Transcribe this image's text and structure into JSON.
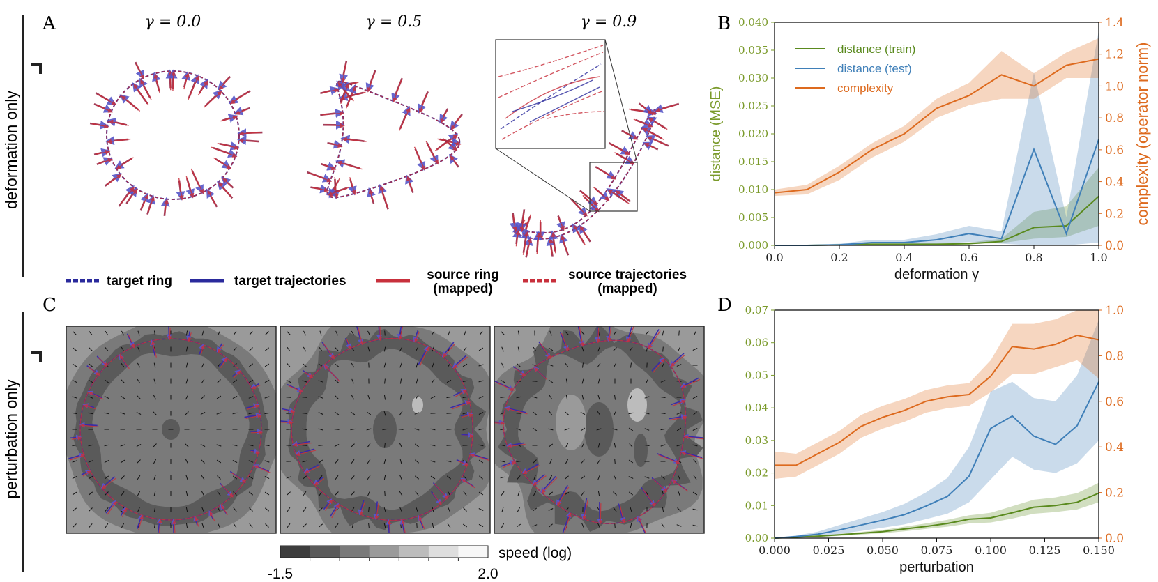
{
  "panel_letters": [
    "A",
    "B",
    "C",
    "D"
  ],
  "row_labels": [
    "deformation only",
    "perturbation only"
  ],
  "panel_a": {
    "subtitles": [
      "γ = 0.0",
      "γ = 0.5",
      "γ = 0.9"
    ]
  },
  "legend_a": [
    {
      "label": "target ring",
      "color": "#2a2a9c",
      "style": "dashed"
    },
    {
      "label": "target trajectories",
      "color": "#2a2a9c",
      "style": "solid"
    },
    {
      "label": "source ring\n(mapped)",
      "color": "#c8303c",
      "style": "solid"
    },
    {
      "label": "source trajectories\n(mapped)",
      "color": "#c8303c",
      "style": "dashed"
    }
  ],
  "colorbar": {
    "label": "speed (log)",
    "min_label": "-1.5",
    "max_label": "2.0",
    "colors": [
      "#3d3d3d",
      "#5a5a5a",
      "#7a7a7a",
      "#9a9a9a",
      "#bcbcbc",
      "#dedede",
      "#f7f7f7"
    ]
  },
  "colors": {
    "train": "#5a8a1e",
    "test": "#3f7fb8",
    "complexity": "#dd6a1e",
    "left_axis": "#7a9a2a",
    "right_axis": "#dd6a1e"
  },
  "chart_data": [
    {
      "panel": "B",
      "type": "line",
      "xlabel": "deformation γ",
      "ylabel_left": "distance (MSE)",
      "ylabel_right": "complexity (operator norm)",
      "xlim": [
        0.0,
        1.0
      ],
      "ylim_left": [
        0.0,
        0.04
      ],
      "ylim_right": [
        0.0,
        1.4
      ],
      "x_ticks": [
        "0.0",
        "0.2",
        "0.4",
        "0.6",
        "0.8",
        "1.0"
      ],
      "y_ticks_left": [
        "0.000",
        "0.005",
        "0.010",
        "0.015",
        "0.020",
        "0.025",
        "0.030",
        "0.035",
        "0.040"
      ],
      "y_ticks_right": [
        "0.0",
        "0.2",
        "0.4",
        "0.6",
        "0.8",
        "1.0",
        "1.2",
        "1.4"
      ],
      "legend": [
        "distance (train)",
        "distance (test)",
        "complexity"
      ],
      "x": [
        0.0,
        0.1,
        0.2,
        0.3,
        0.4,
        0.5,
        0.6,
        0.7,
        0.8,
        0.9,
        1.0
      ],
      "series": [
        {
          "name": "distance (train)",
          "axis": "left",
          "color": "#5a8a1e",
          "values": [
            0.0,
            0.0,
            0.0001,
            0.0002,
            0.0002,
            0.0002,
            0.0003,
            0.0007,
            0.0032,
            0.0035,
            0.0088
          ],
          "lower": [
            0.0,
            0.0,
            0.0,
            0.0001,
            0.0001,
            0.0001,
            0.0002,
            0.0004,
            0.0012,
            0.0015,
            0.0035
          ],
          "upper": [
            0.0,
            0.0001,
            0.0002,
            0.0003,
            0.0003,
            0.0003,
            0.0005,
            0.0012,
            0.006,
            0.007,
            0.014
          ]
        },
        {
          "name": "distance (test)",
          "axis": "left",
          "color": "#3f7fb8",
          "values": [
            0.0,
            0.0,
            0.0001,
            0.0005,
            0.0005,
            0.001,
            0.0021,
            0.0012,
            0.0172,
            0.0021,
            0.019
          ],
          "lower": [
            0.0,
            0.0,
            0.0,
            0.0001,
            0.0001,
            0.0003,
            0.0006,
            0.0003,
            0.0,
            0.0,
            0.0005
          ],
          "upper": [
            0.0,
            0.0001,
            0.0003,
            0.001,
            0.001,
            0.002,
            0.0035,
            0.0025,
            0.031,
            0.005,
            0.0385
          ]
        },
        {
          "name": "complexity",
          "axis": "right",
          "color": "#dd6a1e",
          "values": [
            0.33,
            0.35,
            0.46,
            0.6,
            0.7,
            0.86,
            0.94,
            1.07,
            1.0,
            1.13,
            1.17
          ],
          "lower": [
            0.31,
            0.32,
            0.41,
            0.55,
            0.65,
            0.8,
            0.88,
            0.92,
            0.92,
            1.05,
            1.05
          ],
          "upper": [
            0.35,
            0.38,
            0.5,
            0.64,
            0.75,
            0.92,
            1.02,
            1.22,
            1.08,
            1.21,
            1.3
          ]
        }
      ]
    },
    {
      "panel": "D",
      "type": "line",
      "xlabel": "perturbation",
      "ylabel_left": "",
      "ylabel_right": "",
      "xlim": [
        0.0,
        0.15
      ],
      "ylim_left": [
        0.0,
        0.07
      ],
      "ylim_right": [
        0.0,
        1.0
      ],
      "x_ticks": [
        "0.000",
        "0.025",
        "0.050",
        "0.075",
        "0.100",
        "0.125",
        "0.150"
      ],
      "y_ticks_left": [
        "0.00",
        "0.01",
        "0.02",
        "0.03",
        "0.04",
        "0.05",
        "0.06",
        "0.07"
      ],
      "y_ticks_right": [
        "0.0",
        "0.2",
        "0.4",
        "0.6",
        "0.8",
        "1.0"
      ],
      "x": [
        0.0,
        0.01,
        0.02,
        0.03,
        0.04,
        0.05,
        0.06,
        0.07,
        0.08,
        0.09,
        0.1,
        0.11,
        0.12,
        0.13,
        0.14,
        0.15
      ],
      "series": [
        {
          "name": "distance (train)",
          "axis": "left",
          "color": "#5a8a1e",
          "values": [
            0.0,
            0.0003,
            0.0006,
            0.001,
            0.0015,
            0.002,
            0.0028,
            0.0036,
            0.0045,
            0.0058,
            0.0062,
            0.0078,
            0.0095,
            0.01,
            0.011,
            0.0138
          ],
          "lower": [
            0.0,
            0.0002,
            0.0004,
            0.0007,
            0.0011,
            0.0015,
            0.0021,
            0.0028,
            0.0035,
            0.0045,
            0.0048,
            0.006,
            0.0075,
            0.008,
            0.0088,
            0.011
          ],
          "upper": [
            0.0,
            0.0004,
            0.0008,
            0.0013,
            0.0019,
            0.0025,
            0.0035,
            0.0045,
            0.0056,
            0.007,
            0.0078,
            0.0098,
            0.0118,
            0.0125,
            0.0138,
            0.017
          ]
        },
        {
          "name": "distance (test)",
          "axis": "left",
          "color": "#3f7fb8",
          "values": [
            0.0,
            0.0005,
            0.0012,
            0.0025,
            0.004,
            0.0055,
            0.0072,
            0.0098,
            0.0128,
            0.019,
            0.0337,
            0.0375,
            0.0313,
            0.0288,
            0.0345,
            0.048
          ],
          "lower": [
            0.0,
            0.0002,
            0.0006,
            0.0013,
            0.0022,
            0.0032,
            0.0042,
            0.0058,
            0.0075,
            0.011,
            0.018,
            0.025,
            0.021,
            0.02,
            0.023,
            0.03
          ],
          "upper": [
            0.0,
            0.0008,
            0.002,
            0.004,
            0.006,
            0.008,
            0.0105,
            0.014,
            0.0185,
            0.028,
            0.045,
            0.048,
            0.043,
            0.042,
            0.05,
            0.067
          ]
        },
        {
          "name": "complexity",
          "axis": "right",
          "color": "#dd6a1e",
          "values": [
            0.32,
            0.32,
            0.37,
            0.42,
            0.49,
            0.53,
            0.56,
            0.6,
            0.62,
            0.63,
            0.71,
            0.84,
            0.83,
            0.85,
            0.89,
            0.87
          ],
          "lower": [
            0.26,
            0.27,
            0.32,
            0.37,
            0.44,
            0.48,
            0.51,
            0.55,
            0.57,
            0.58,
            0.64,
            0.72,
            0.72,
            0.75,
            0.78,
            0.7
          ],
          "upper": [
            0.38,
            0.37,
            0.42,
            0.47,
            0.54,
            0.58,
            0.61,
            0.65,
            0.67,
            0.68,
            0.78,
            0.94,
            0.94,
            0.96,
            1.0,
            1.0
          ]
        }
      ]
    }
  ]
}
